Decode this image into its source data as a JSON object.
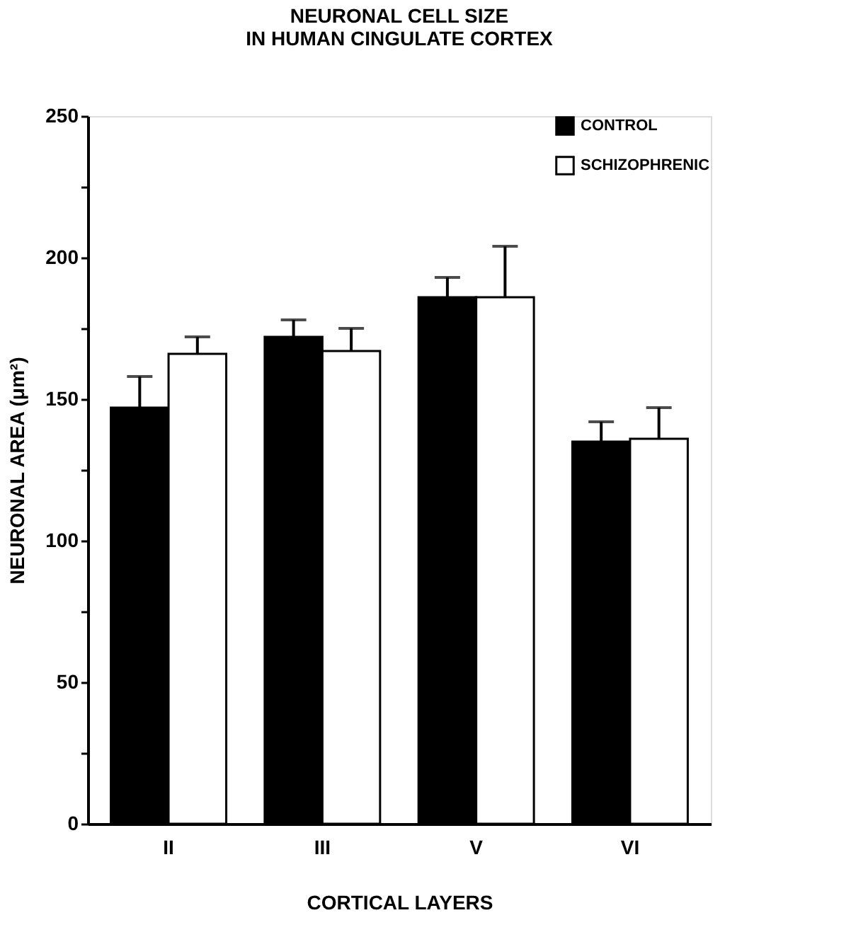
{
  "chart_data": {
    "type": "bar",
    "title": "NEURONAL CELL SIZE\nIN HUMAN CINGULATE CORTEX",
    "xlabel": "CORTICAL LAYERS",
    "ylabel": "NEURONAL AREA (μm²)",
    "categories": [
      "II",
      "III",
      "V",
      "VI"
    ],
    "series": [
      {
        "name": "CONTROL",
        "color": "#000000",
        "values": [
          147,
          172,
          186,
          135
        ],
        "errors": [
          [
            147,
            158
          ],
          [
            172,
            178
          ],
          [
            186,
            193
          ],
          [
            135,
            142
          ]
        ]
      },
      {
        "name": "SCHIZOPHRENIC",
        "color": "#ffffff",
        "values": [
          166,
          167,
          186,
          136
        ],
        "errors": [
          [
            166,
            172
          ],
          [
            167,
            175
          ],
          [
            186,
            204
          ],
          [
            136,
            147
          ]
        ]
      }
    ],
    "ylim": [
      0,
      250
    ],
    "yticks": [
      0,
      {
        "value": 25,
        "label": null
      },
      50,
      {
        "value": 75,
        "label": null
      },
      100,
      {
        "value": 125,
        "label": null
      },
      150,
      {
        "value": 175,
        "label": null
      },
      200,
      {
        "value": 225,
        "label": null
      },
      250
    ],
    "grid": false,
    "legend": "top right"
  }
}
